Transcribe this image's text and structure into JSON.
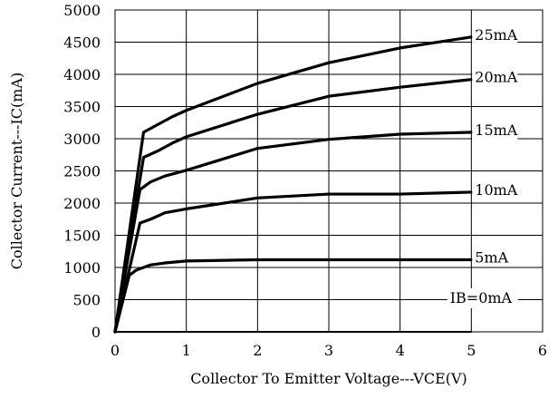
{
  "chart_data": {
    "type": "line",
    "title": "",
    "xlabel": "Collector To Emitter Voltage---VCE(V)",
    "ylabel": "Collector Current---IC(mA)",
    "xlim": [
      0,
      6
    ],
    "ylim": [
      0,
      5000
    ],
    "xticks": [
      "0",
      "1",
      "2",
      "3",
      "4",
      "5",
      "6"
    ],
    "yticks": [
      "0",
      "500",
      "1000",
      "1500",
      "2000",
      "2500",
      "3000",
      "3500",
      "4000",
      "4500",
      "5000"
    ],
    "grid": true,
    "series": [
      {
        "name": "25mA",
        "x": [
          0,
          0.4,
          0.6,
          0.8,
          1,
          2,
          3,
          4,
          5
        ],
        "y": [
          0,
          3100,
          3220,
          3340,
          3440,
          3860,
          4180,
          4410,
          4580
        ]
      },
      {
        "name": "20mA",
        "x": [
          0,
          0.4,
          0.6,
          0.8,
          1,
          2,
          3,
          4,
          5
        ],
        "y": [
          0,
          2710,
          2810,
          2930,
          3030,
          3380,
          3660,
          3800,
          3920
        ]
      },
      {
        "name": "15mA",
        "x": [
          0,
          0.35,
          0.5,
          0.7,
          1,
          2,
          3,
          4,
          5
        ],
        "y": [
          0,
          2210,
          2330,
          2420,
          2510,
          2850,
          2990,
          3070,
          3100
        ]
      },
      {
        "name": "10mA",
        "x": [
          0,
          0.35,
          0.5,
          0.7,
          1,
          2,
          3,
          4,
          5
        ],
        "y": [
          0,
          1690,
          1750,
          1850,
          1910,
          2080,
          2140,
          2140,
          2170
        ]
      },
      {
        "name": "5mA",
        "x": [
          0,
          0.2,
          0.3,
          0.5,
          0.7,
          1,
          2,
          3,
          4,
          5
        ],
        "y": [
          0,
          880,
          960,
          1040,
          1070,
          1100,
          1120,
          1120,
          1120,
          1120
        ]
      },
      {
        "name": "IB=0mA",
        "x": [
          0,
          5
        ],
        "y": [
          0,
          0
        ]
      }
    ]
  }
}
